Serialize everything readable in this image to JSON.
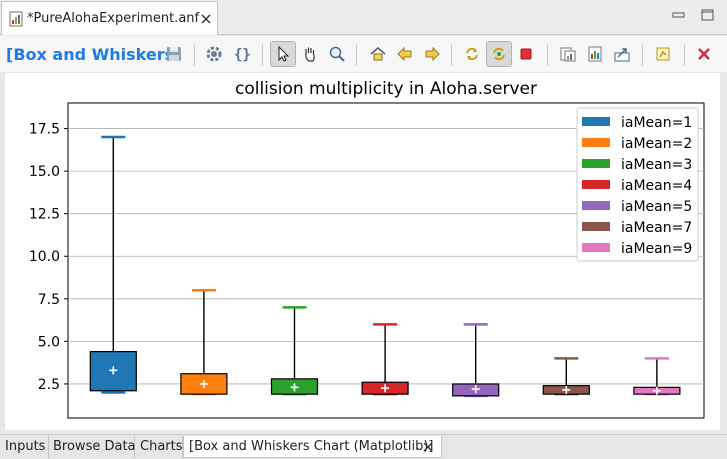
{
  "editor": {
    "tab_title": "*PureAlohaExperiment.anf",
    "close_icon": "close-icon",
    "file_icon": "analysis-file-icon"
  },
  "toolbar": {
    "chart_title": "[Box and Whiskers",
    "items": [
      "save-icon",
      "settings-gear-icon",
      "braces-icon",
      "arrow-pointer-icon",
      "hand-pan-icon",
      "zoom-magnifier-icon",
      "home-icon",
      "back-arrow-icon",
      "forward-arrow-icon",
      "refresh-icon",
      "auto-refresh-icon",
      "stop-icon",
      "copy-image-icon",
      "export-chart-icon",
      "export-data-icon",
      "temp-chart-icon",
      "close-all-icon"
    ]
  },
  "colors": {
    "accent": "#1e7ce3",
    "series": [
      "#1f77b4",
      "#ff7f0e",
      "#2ca02c",
      "#d62728",
      "#9467bd",
      "#8c564b",
      "#e377c2"
    ]
  },
  "chart_data": {
    "type": "box",
    "title": "collision multiplicity in Aloha.server",
    "xlabel": "",
    "ylabel": "",
    "ylim": [
      0.5,
      19.0
    ],
    "y_ticks": [
      "2.5",
      "5.0",
      "7.5",
      "10.0",
      "12.5",
      "15.0",
      "17.5"
    ],
    "y_tick_values": [
      2.5,
      5.0,
      7.5,
      10.0,
      12.5,
      15.0,
      17.5
    ],
    "grid": "horizontal",
    "legend_position": "top-right",
    "series": [
      {
        "name": "iaMean=1",
        "min": 2.0,
        "q1": 2.1,
        "q3": 4.4,
        "max": 17.0,
        "mean": 3.3,
        "color": "#1f77b4"
      },
      {
        "name": "iaMean=2",
        "min": 1.9,
        "q1": 1.9,
        "q3": 3.1,
        "max": 8.0,
        "mean": 2.5,
        "color": "#ff7f0e"
      },
      {
        "name": "iaMean=3",
        "min": 1.9,
        "q1": 1.9,
        "q3": 2.8,
        "max": 7.0,
        "mean": 2.3,
        "color": "#2ca02c"
      },
      {
        "name": "iaMean=4",
        "min": 1.9,
        "q1": 1.9,
        "q3": 2.6,
        "max": 6.0,
        "mean": 2.25,
        "color": "#d62728"
      },
      {
        "name": "iaMean=5",
        "min": 1.8,
        "q1": 1.8,
        "q3": 2.5,
        "max": 6.0,
        "mean": 2.2,
        "color": "#9467bd"
      },
      {
        "name": "iaMean=7",
        "min": 1.9,
        "q1": 1.9,
        "q3": 2.4,
        "max": 4.0,
        "mean": 2.15,
        "color": "#8c564b"
      },
      {
        "name": "iaMean=9",
        "min": 1.9,
        "q1": 1.9,
        "q3": 2.3,
        "max": 4.0,
        "mean": 2.1,
        "color": "#e377c2"
      }
    ]
  },
  "bottom_tabs": [
    {
      "label": "Inputs"
    },
    {
      "label": "Browse Data"
    },
    {
      "label": "Charts"
    },
    {
      "label": "[Box and Whiskers Chart (Matplotlib)]"
    }
  ]
}
